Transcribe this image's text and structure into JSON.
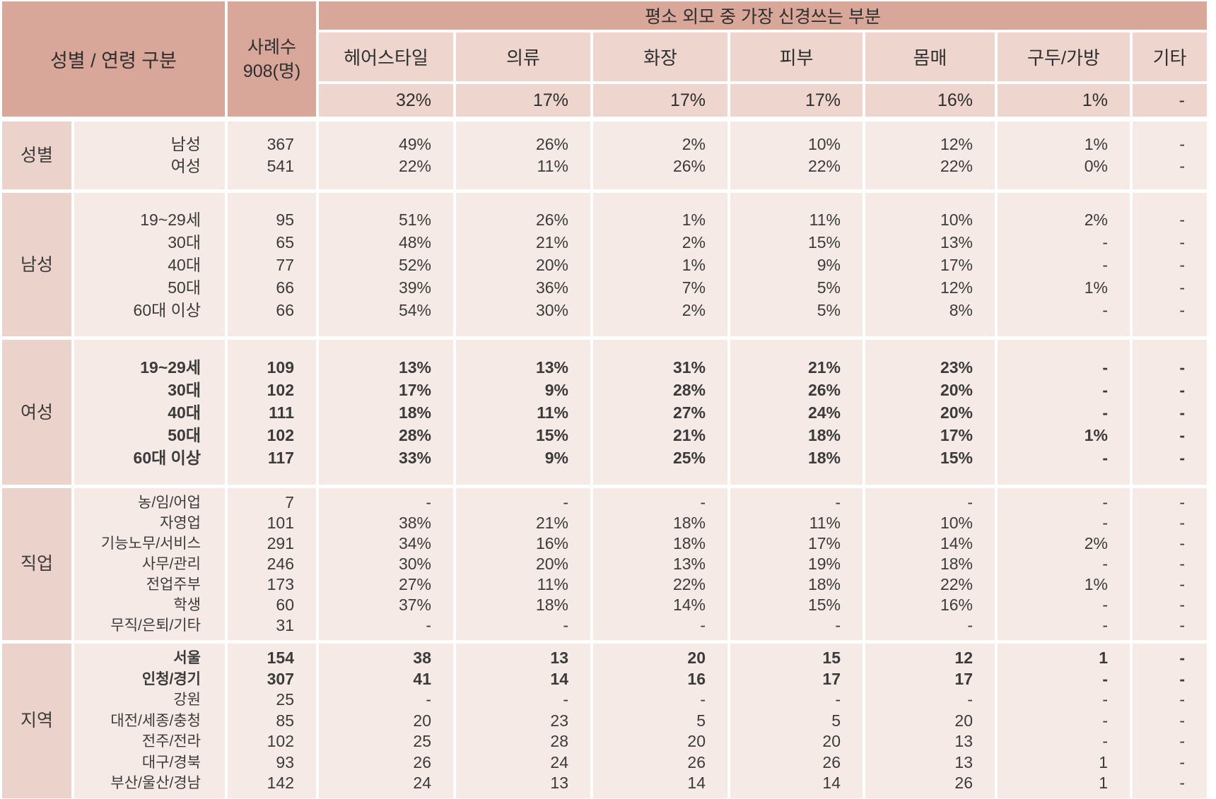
{
  "chart_data": {
    "type": "table",
    "title": "평소 외모 중 가장 신경쓰는 부분",
    "row_header": "성별 / 연령 구분",
    "cases_label": "사례수",
    "cases_count": "908(명)",
    "columns": [
      "헤어스타일",
      "의류",
      "화장",
      "피부",
      "몸매",
      "구두/가방",
      "기타"
    ],
    "column_totals": [
      "32%",
      "17%",
      "17%",
      "17%",
      "16%",
      "1%",
      "-"
    ],
    "blocks": [
      {
        "group": "성별",
        "rows": [
          {
            "label": "남성",
            "cases": "367",
            "values": [
              "49%",
              "26%",
              "2%",
              "10%",
              "12%",
              "1%",
              "-"
            ],
            "bold": false
          },
          {
            "label": "여성",
            "cases": "541",
            "values": [
              "22%",
              "11%",
              "26%",
              "22%",
              "22%",
              "0%",
              "-"
            ],
            "bold": false
          }
        ]
      },
      {
        "group": "남성",
        "rows": [
          {
            "label": "19~29세",
            "cases": "95",
            "values": [
              "51%",
              "26%",
              "1%",
              "11%",
              "10%",
              "2%",
              "-"
            ],
            "bold": false
          },
          {
            "label": "30대",
            "cases": "65",
            "values": [
              "48%",
              "21%",
              "2%",
              "15%",
              "13%",
              "-",
              "-"
            ],
            "bold": false
          },
          {
            "label": "40대",
            "cases": "77",
            "values": [
              "52%",
              "20%",
              "1%",
              "9%",
              "17%",
              "-",
              "-"
            ],
            "bold": false
          },
          {
            "label": "50대",
            "cases": "66",
            "values": [
              "39%",
              "36%",
              "7%",
              "5%",
              "12%",
              "1%",
              "-"
            ],
            "bold": false
          },
          {
            "label": "60대 이상",
            "cases": "66",
            "values": [
              "54%",
              "30%",
              "2%",
              "5%",
              "8%",
              "-",
              "-"
            ],
            "bold": false
          }
        ]
      },
      {
        "group": "여성",
        "rows": [
          {
            "label": "19~29세",
            "cases": "109",
            "values": [
              "13%",
              "13%",
              "31%",
              "21%",
              "23%",
              "-",
              "-"
            ],
            "bold": true
          },
          {
            "label": "30대",
            "cases": "102",
            "values": [
              "17%",
              "9%",
              "28%",
              "26%",
              "20%",
              "-",
              "-"
            ],
            "bold": true
          },
          {
            "label": "40대",
            "cases": "111",
            "values": [
              "18%",
              "11%",
              "27%",
              "24%",
              "20%",
              "-",
              "-"
            ],
            "bold": true
          },
          {
            "label": "50대",
            "cases": "102",
            "values": [
              "28%",
              "15%",
              "21%",
              "18%",
              "17%",
              "1%",
              "-"
            ],
            "bold": true
          },
          {
            "label": "60대 이상",
            "cases": "117",
            "values": [
              "33%",
              "9%",
              "25%",
              "18%",
              "15%",
              "-",
              "-"
            ],
            "bold": true
          }
        ]
      },
      {
        "group": "직업",
        "rows": [
          {
            "label": "농/임/어업",
            "cases": "7",
            "values": [
              "-",
              "-",
              "-",
              "-",
              "-",
              "-",
              "-"
            ],
            "bold": false
          },
          {
            "label": "자영업",
            "cases": "101",
            "values": [
              "38%",
              "21%",
              "18%",
              "11%",
              "10%",
              "-",
              "-"
            ],
            "bold": false
          },
          {
            "label": "기능노무/서비스",
            "cases": "291",
            "values": [
              "34%",
              "16%",
              "18%",
              "17%",
              "14%",
              "2%",
              "-"
            ],
            "bold": false
          },
          {
            "label": "사무/관리",
            "cases": "246",
            "values": [
              "30%",
              "20%",
              "13%",
              "19%",
              "18%",
              "-",
              "-"
            ],
            "bold": false
          },
          {
            "label": "전업주부",
            "cases": "173",
            "values": [
              "27%",
              "11%",
              "22%",
              "18%",
              "22%",
              "1%",
              "-"
            ],
            "bold": false
          },
          {
            "label": "학생",
            "cases": "60",
            "values": [
              "37%",
              "18%",
              "14%",
              "15%",
              "16%",
              "-",
              "-"
            ],
            "bold": false
          },
          {
            "label": "무직/은퇴/기타",
            "cases": "31",
            "values": [
              "-",
              "-",
              "-",
              "-",
              "-",
              "-",
              "-"
            ],
            "bold": false
          }
        ]
      },
      {
        "group": "지역",
        "rows": [
          {
            "label": "서울",
            "cases": "154",
            "values": [
              "38",
              "13",
              "20",
              "15",
              "12",
              "1",
              "-"
            ],
            "bold": true
          },
          {
            "label": "인청/경기",
            "cases": "307",
            "values": [
              "41",
              "14",
              "16",
              "17",
              "17",
              "-",
              "-"
            ],
            "bold": true
          },
          {
            "label": "강원",
            "cases": "25",
            "values": [
              "-",
              "-",
              "-",
              "-",
              "-",
              "-",
              "-"
            ],
            "bold": false
          },
          {
            "label": "대전/세종/충청",
            "cases": "85",
            "values": [
              "20",
              "23",
              "5",
              "5",
              "20",
              "-",
              "-"
            ],
            "bold": false
          },
          {
            "label": "전주/전라",
            "cases": "102",
            "values": [
              "25",
              "28",
              "20",
              "20",
              "13",
              "-",
              "-"
            ],
            "bold": false
          },
          {
            "label": "대구/경북",
            "cases": "93",
            "values": [
              "26",
              "24",
              "26",
              "26",
              "13",
              "1",
              "-"
            ],
            "bold": false
          },
          {
            "label": "부산/울산/경남",
            "cases": "142",
            "values": [
              "24",
              "13",
              "14",
              "14",
              "26",
              "1",
              "-"
            ],
            "bold": false
          }
        ]
      }
    ]
  },
  "colors": {
    "header_dark": "#d8a79a",
    "header_mid": "#eed6ce",
    "group_cell": "#ebd2ca",
    "body_cell": "#f6eae6",
    "grid_gap": "#ffffff",
    "text": "#3b3b3b"
  }
}
